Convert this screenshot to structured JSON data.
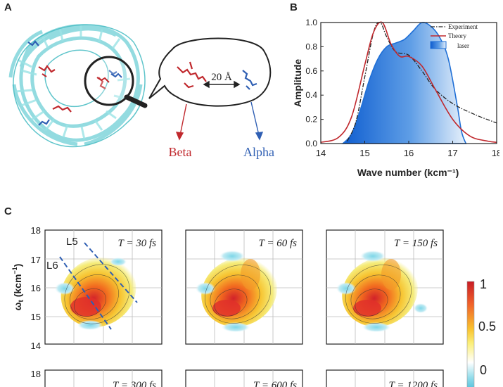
{
  "panels": {
    "a": {
      "letter": "A",
      "distance_label": "20 Å",
      "beta_label": "Beta",
      "alpha_label": "Alpha",
      "colors": {
        "beta": "#c0282d",
        "alpha": "#2f5fb3",
        "protein": "#7fd8dc"
      }
    },
    "b": {
      "letter": "B"
    },
    "c": {
      "letter": "C",
      "ylabel": "ω",
      "ylabel_sub": "t",
      "ylabel_unit": " (kcm",
      "ylabel_sup": "−1",
      "ylabel_close": ")",
      "line_labels": [
        "L5",
        "L6"
      ],
      "yticks": [
        "18",
        "17",
        "16",
        "15",
        "14"
      ],
      "bottom_ytick": "18",
      "subplots": [
        {
          "label": "T = 30 fs"
        },
        {
          "label": "T = 60 fs"
        },
        {
          "label": "T = 150 fs"
        },
        {
          "label": "T = 300 fs"
        },
        {
          "label": "T = 600 fs"
        },
        {
          "label": "T = 1200 fs"
        }
      ],
      "colorbar": {
        "ticks": [
          "1",
          "0.5",
          "0"
        ]
      }
    }
  },
  "chart_data": {
    "type": "line",
    "title": "",
    "xlabel": "Wave number (kcm⁻¹)",
    "ylabel": "Amplitude",
    "xlim": [
      14,
      18
    ],
    "ylim": [
      0,
      1.0
    ],
    "xticks": [
      "14",
      "15",
      "16",
      "17",
      "18"
    ],
    "yticks": [
      "0.0",
      "0.2",
      "0.4",
      "0.6",
      "0.8",
      "1.0"
    ],
    "legend": {
      "placement": "top-right",
      "entries": [
        "Experiment",
        "Theory",
        "laser"
      ]
    },
    "series": [
      {
        "name": "Experiment",
        "style": "dash-dot",
        "color": "#222222",
        "x": [
          14.6,
          14.8,
          15.0,
          15.2,
          15.35,
          15.5,
          15.7,
          16.0,
          16.3,
          16.6,
          17.0,
          17.5,
          18.0
        ],
        "y": [
          0.02,
          0.18,
          0.55,
          0.92,
          1.0,
          0.88,
          0.76,
          0.73,
          0.6,
          0.45,
          0.33,
          0.24,
          0.17
        ]
      },
      {
        "name": "Theory",
        "style": "solid",
        "color": "#c0282d",
        "x": [
          14.0,
          14.4,
          14.7,
          15.0,
          15.2,
          15.4,
          15.6,
          15.8,
          16.0,
          16.3,
          16.6,
          17.0,
          17.4,
          17.8,
          18.0
        ],
        "y": [
          0.01,
          0.05,
          0.22,
          0.65,
          0.92,
          1.0,
          0.82,
          0.72,
          0.72,
          0.64,
          0.45,
          0.2,
          0.06,
          0.02,
          0.01
        ]
      },
      {
        "name": "laser",
        "style": "filled-area",
        "color": "#1f6fd6",
        "x": [
          14.5,
          14.7,
          14.9,
          15.1,
          15.3,
          15.5,
          15.7,
          15.9,
          16.1,
          16.3,
          16.5,
          16.7,
          16.9,
          17.1,
          17.2,
          17.3
        ],
        "y": [
          0.0,
          0.08,
          0.28,
          0.52,
          0.7,
          0.8,
          0.83,
          0.86,
          0.93,
          1.0,
          0.97,
          0.88,
          0.7,
          0.32,
          0.1,
          0.0
        ]
      }
    ]
  }
}
